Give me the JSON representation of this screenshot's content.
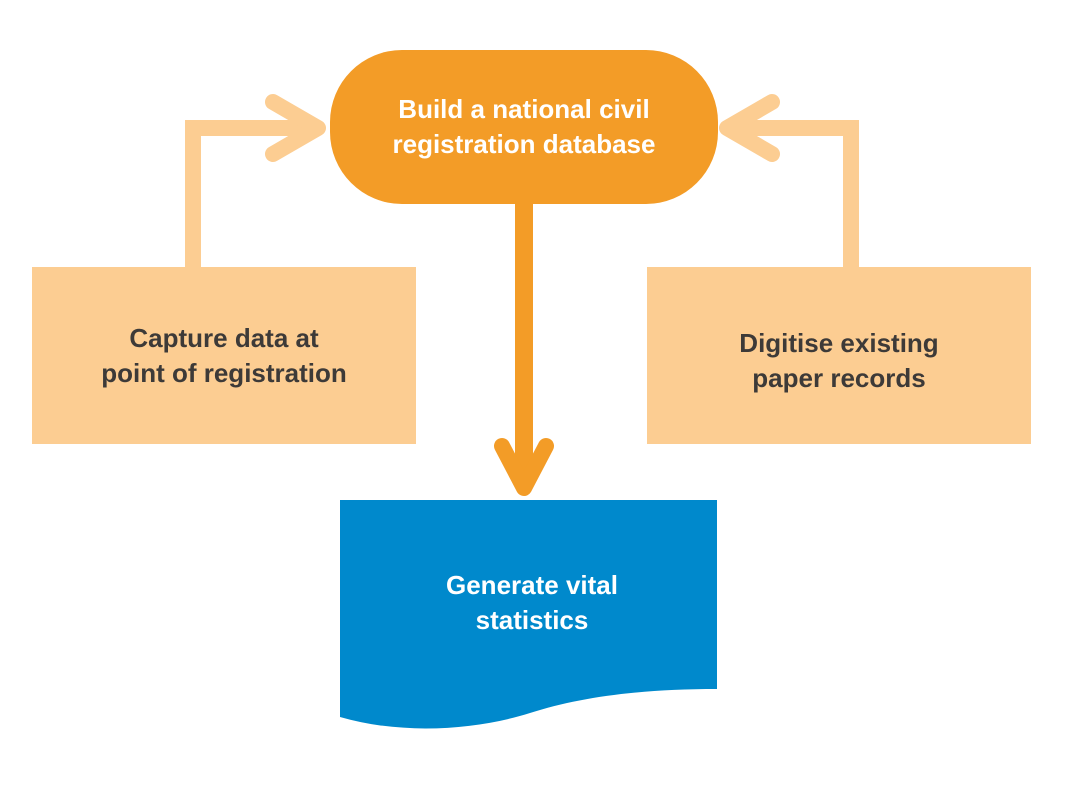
{
  "diagram": {
    "colors": {
      "primary_orange": "#f39c27",
      "light_orange": "#fccd92",
      "connector_light": "#fccd92",
      "blue": "#0089cc",
      "dark_text": "#3d3a38",
      "light_text": "#ffffff"
    },
    "nodes": {
      "database": {
        "shape": "rounded-terminator",
        "lines": [
          "Build a national civil",
          "registration database"
        ]
      },
      "capture": {
        "shape": "rectangle",
        "lines": [
          "Capture data at",
          "point of registration"
        ]
      },
      "digitise": {
        "shape": "rectangle",
        "lines": [
          "Digitise existing",
          "paper records"
        ]
      },
      "statistics": {
        "shape": "document",
        "lines": [
          "Generate vital",
          "statistics"
        ]
      }
    },
    "edges": [
      {
        "from": "capture",
        "to": "database"
      },
      {
        "from": "digitise",
        "to": "database"
      },
      {
        "from": "database",
        "to": "statistics"
      }
    ]
  }
}
